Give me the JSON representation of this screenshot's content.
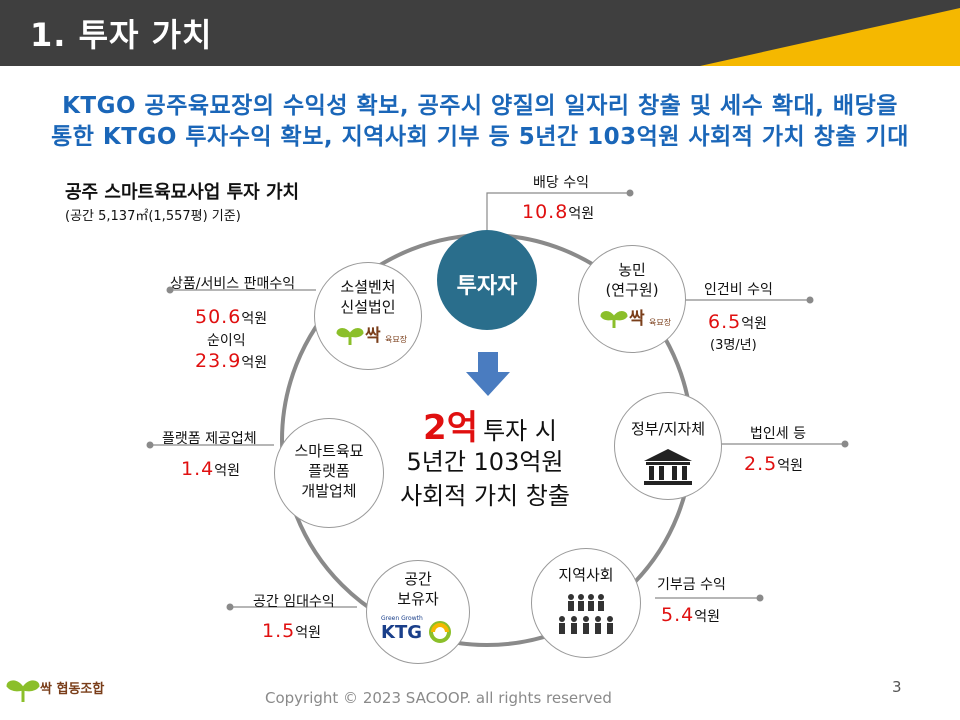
{
  "slide": {
    "title": "1. 투자 가치",
    "headline_line1": "KTGO 공주육묘장의 수익성 확보, 공주시 양질의 일자리 창출 및 세수 확대, 배당을",
    "headline_line2": "통한 KTGO 투자수익 확보, 지역사회 기부 등 5년간 103억원 사회적 가치 창출 기대",
    "diagram_title": "공주 스마트육묘사업 투자 가치",
    "diagram_subtitle": "(공간 5,137㎡(1,557평) 기준)",
    "page_number": "3",
    "copyright": "Copyright © 2023 SACOOP. all rights reserved",
    "footer_logo_text": "싹 협동조합"
  },
  "center": {
    "investor_label": "투자자",
    "amount": "2억",
    "line1_rest": "투자 시",
    "line2": "5년간 103억원",
    "line3": "사회적 가치 창출"
  },
  "nodes": {
    "corp": {
      "line1": "소셜벤처",
      "line2": "신설법인",
      "logo_text": "싹",
      "logo_sub": "육묘장"
    },
    "farmer": {
      "line1": "농민",
      "line2": "(연구원)",
      "logo_text": "싹",
      "logo_sub": "육묘장"
    },
    "gov": {
      "label": "정부/지자체"
    },
    "community": {
      "label": "지역사회"
    },
    "space": {
      "line1": "공간",
      "line2": "보유자",
      "logo_text": "KTG",
      "logo_sub": "Green Growth"
    },
    "platform": {
      "line1": "스마트육묘",
      "line2": "플랫폼",
      "line3": "개발업체"
    }
  },
  "callouts": {
    "dividend": {
      "label": "배당 수익",
      "value": "10.8",
      "unit": "억원"
    },
    "labor": {
      "label": "인건비 수익",
      "value": "6.5",
      "unit": "억원",
      "note": "(3명/년)"
    },
    "tax": {
      "label": "법인세 등",
      "value": "2.5",
      "unit": "억원"
    },
    "donation": {
      "label": "기부금 수익",
      "value": "5.4",
      "unit": "억원"
    },
    "rent": {
      "label": "공간 임대수익",
      "value": "1.5",
      "unit": "억원"
    },
    "platform": {
      "label": "플랫폼 제공업체",
      "value": "1.4",
      "unit": "억원"
    },
    "sales": {
      "label": "상품/서비스 판매수익",
      "value": "50.6",
      "unit": "억원",
      "sub_label": "순이익",
      "sub_value": "23.9",
      "sub_unit": "억원"
    }
  },
  "colors": {
    "title_bar": "#3f3f3f",
    "accent_yellow": "#f5b800",
    "headline_blue": "#1a66b8",
    "investor_fill": "#2a6e8c",
    "arrow_blue": "#4a7cc0",
    "value_red": "#e01010",
    "logo_green": "#8bbf2a",
    "logo_brown": "#7a3e1a"
  }
}
